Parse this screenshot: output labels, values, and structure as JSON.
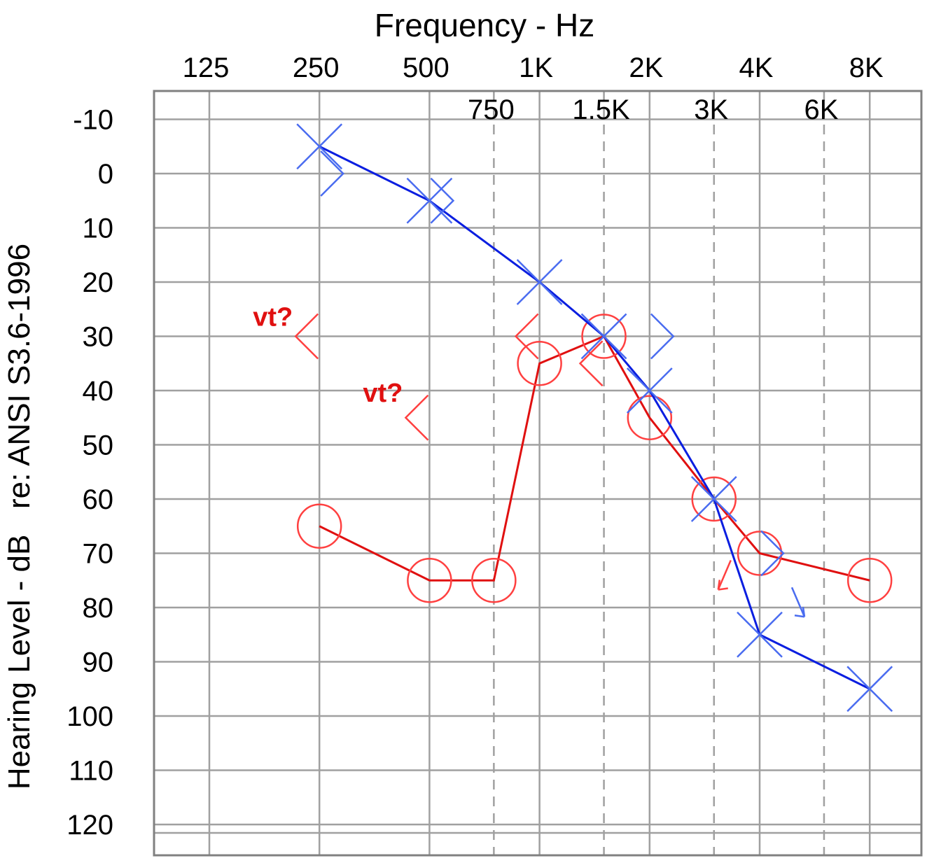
{
  "chart_data": {
    "type": "line",
    "title": "Frequency - Hz",
    "ylabel": "Hearing Level - dB   re: ANSI S3.6-1996",
    "x_scale": "log2",
    "y_inverted": true,
    "ylim": [
      -10,
      120
    ],
    "yticks": [
      -10,
      0,
      10,
      20,
      30,
      40,
      50,
      60,
      70,
      80,
      90,
      100,
      110,
      120
    ],
    "xticks_major": [
      {
        "hz": 125,
        "label": "125"
      },
      {
        "hz": 250,
        "label": "250"
      },
      {
        "hz": 500,
        "label": "500"
      },
      {
        "hz": 1000,
        "label": "1K"
      },
      {
        "hz": 2000,
        "label": "2K"
      },
      {
        "hz": 4000,
        "label": "4K"
      },
      {
        "hz": 8000,
        "label": "8K"
      }
    ],
    "xticks_inter": [
      {
        "hz": 750,
        "label": "750"
      },
      {
        "hz": 1500,
        "label": "1.5K"
      },
      {
        "hz": 3000,
        "label": "3K"
      },
      {
        "hz": 6000,
        "label": "6K"
      }
    ],
    "grid": true,
    "colors": {
      "right": "#ff4040",
      "left": "#4a6cf0",
      "right_line": "#e01010",
      "left_line": "#0a1ee0"
    },
    "series": [
      {
        "ear": "right",
        "symbol": "circle",
        "points": [
          {
            "hz": 250,
            "db": 65
          },
          {
            "hz": 500,
            "db": 75
          },
          {
            "hz": 750,
            "db": 75
          },
          {
            "hz": 1000,
            "db": 35
          },
          {
            "hz": 1500,
            "db": 30
          },
          {
            "hz": 2000,
            "db": 45
          },
          {
            "hz": 3000,
            "db": 60
          },
          {
            "hz": 4000,
            "db": 70
          },
          {
            "hz": 8000,
            "db": 75
          }
        ]
      },
      {
        "ear": "left",
        "symbol": "cross",
        "points": [
          {
            "hz": 250,
            "db": -5
          },
          {
            "hz": 500,
            "db": 5
          },
          {
            "hz": 1000,
            "db": 20
          },
          {
            "hz": 1500,
            "db": 30
          },
          {
            "hz": 2000,
            "db": 40
          },
          {
            "hz": 3000,
            "db": 60
          },
          {
            "hz": 4000,
            "db": 85
          },
          {
            "hz": 8000,
            "db": 95
          }
        ]
      },
      {
        "ear": "right",
        "symbol": "bone-bracket-left",
        "points": [
          {
            "hz": 250,
            "db": 30
          },
          {
            "hz": 500,
            "db": 45
          },
          {
            "hz": 1000,
            "db": 30
          },
          {
            "hz": 1500,
            "db": 35
          }
        ]
      },
      {
        "ear": "left",
        "symbol": "bone-bracket-right",
        "points": [
          {
            "hz": 250,
            "db": 0
          },
          {
            "hz": 500,
            "db": 5
          },
          {
            "hz": 2000,
            "db": 30
          },
          {
            "hz": 4000,
            "db": 70
          }
        ]
      }
    ],
    "no_response": [
      {
        "ear": "right",
        "hz": 3000,
        "db": 70
      },
      {
        "ear": "left",
        "hz": 4000,
        "db": 75
      }
    ],
    "annotations": [
      {
        "text": "vt?",
        "hz": 250,
        "db": 27
      },
      {
        "text": "vt?",
        "hz": 500,
        "db": 41
      }
    ]
  }
}
